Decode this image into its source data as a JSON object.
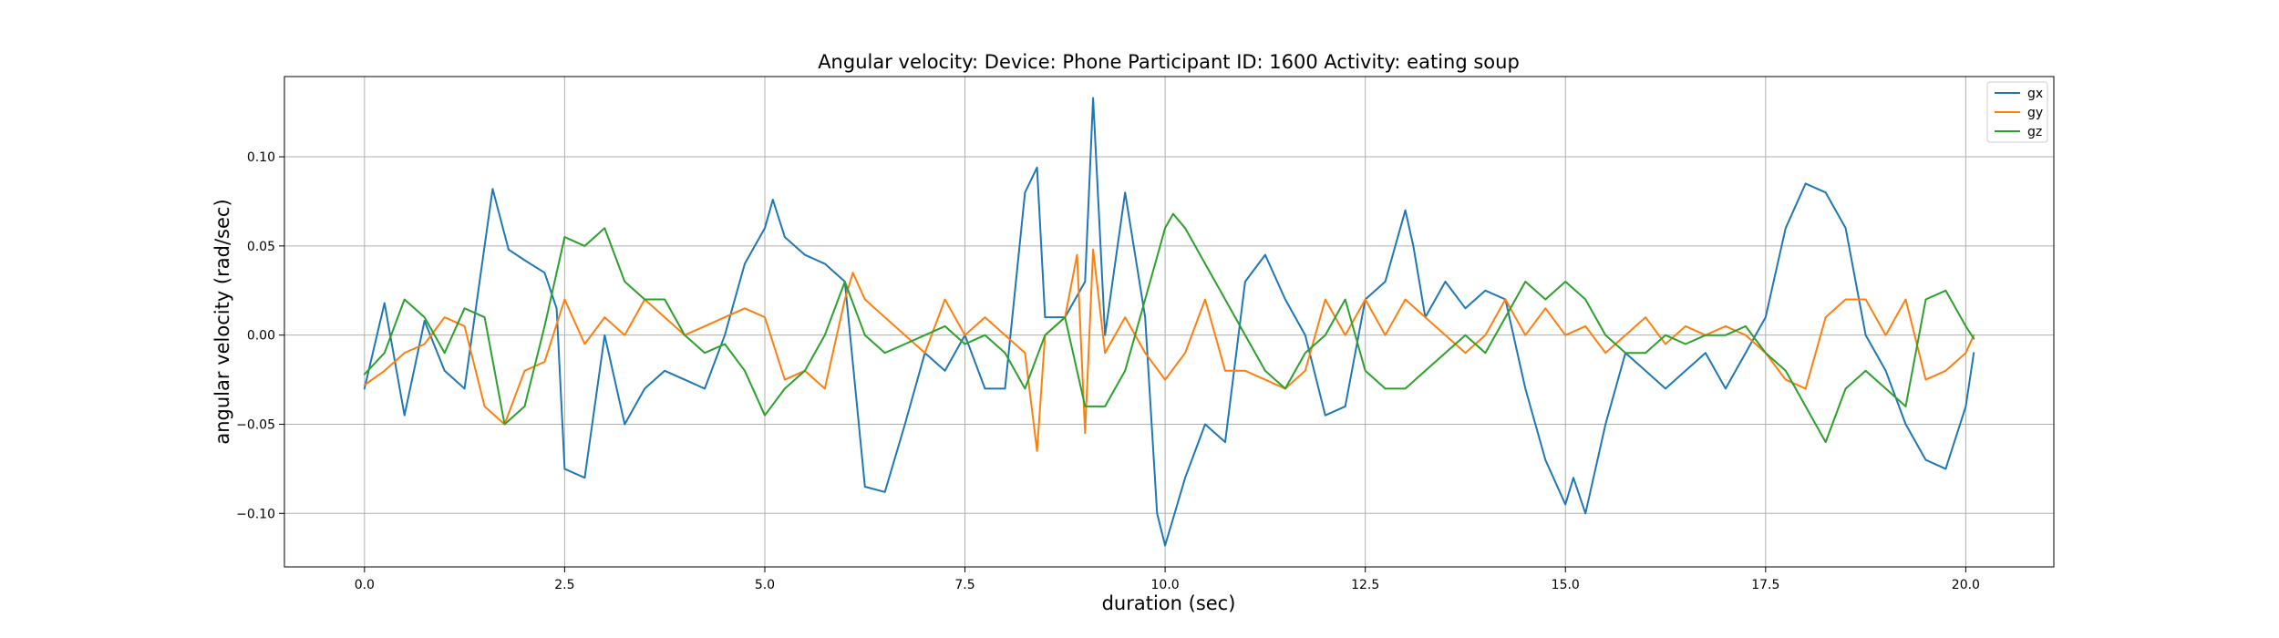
{
  "chart_data": {
    "type": "line",
    "title": "Angular velocity:  Device: Phone     Participant ID: 1600      Activity:  eating soup",
    "xlabel": "duration  (sec)",
    "ylabel": "angular velocity  (rad/sec)",
    "xlim": [
      -1.0,
      21.1
    ],
    "ylim": [
      -0.13,
      0.145
    ],
    "xticks": [
      0.0,
      2.5,
      5.0,
      7.5,
      10.0,
      12.5,
      15.0,
      17.5,
      20.0
    ],
    "xtick_labels": [
      "0.0",
      "2.5",
      "5.0",
      "7.5",
      "10.0",
      "12.5",
      "15.0",
      "17.5",
      "20.0"
    ],
    "yticks": [
      -0.1,
      -0.05,
      0.0,
      0.05,
      0.1
    ],
    "ytick_labels": [
      "−0.10",
      "−0.05",
      "0.00",
      "0.05",
      "0.10"
    ],
    "grid": true,
    "legend_position": "top-right",
    "series": [
      {
        "name": "gx",
        "color": "#1f77b4",
        "x": [
          0.0,
          0.25,
          0.5,
          0.75,
          1.0,
          1.25,
          1.5,
          1.6,
          1.8,
          2.0,
          2.25,
          2.4,
          2.5,
          2.75,
          3.0,
          3.25,
          3.5,
          3.75,
          4.0,
          4.25,
          4.5,
          4.75,
          5.0,
          5.1,
          5.25,
          5.5,
          5.75,
          6.0,
          6.25,
          6.5,
          6.75,
          7.0,
          7.25,
          7.5,
          7.75,
          8.0,
          8.25,
          8.4,
          8.5,
          8.75,
          9.0,
          9.1,
          9.25,
          9.5,
          9.75,
          9.9,
          10.0,
          10.25,
          10.5,
          10.75,
          11.0,
          11.25,
          11.5,
          11.75,
          12.0,
          12.25,
          12.5,
          12.75,
          13.0,
          13.1,
          13.25,
          13.5,
          13.75,
          14.0,
          14.25,
          14.5,
          14.75,
          15.0,
          15.1,
          15.25,
          15.5,
          15.75,
          16.0,
          16.25,
          16.5,
          16.75,
          17.0,
          17.25,
          17.5,
          17.75,
          18.0,
          18.25,
          18.5,
          18.75,
          19.0,
          19.25,
          19.5,
          19.75,
          20.0,
          20.1
        ],
        "values": [
          -0.03,
          0.018,
          -0.045,
          0.008,
          -0.02,
          -0.03,
          0.05,
          0.082,
          0.048,
          0.042,
          0.035,
          0.015,
          -0.075,
          -0.08,
          0.0,
          -0.05,
          -0.03,
          -0.02,
          -0.025,
          -0.03,
          0.0,
          0.04,
          0.06,
          0.076,
          0.055,
          0.045,
          0.04,
          0.03,
          -0.085,
          -0.088,
          -0.05,
          -0.01,
          -0.02,
          0.0,
          -0.03,
          -0.03,
          0.08,
          0.094,
          0.01,
          0.01,
          0.03,
          0.133,
          0.0,
          0.08,
          0.01,
          -0.1,
          -0.118,
          -0.08,
          -0.05,
          -0.06,
          0.03,
          0.045,
          0.02,
          0.0,
          -0.045,
          -0.04,
          0.02,
          0.03,
          0.07,
          0.05,
          0.01,
          0.03,
          0.015,
          0.025,
          0.02,
          -0.03,
          -0.07,
          -0.095,
          -0.08,
          -0.1,
          -0.05,
          -0.01,
          -0.02,
          -0.03,
          -0.02,
          -0.01,
          -0.03,
          -0.01,
          0.01,
          0.06,
          0.085,
          0.08,
          0.06,
          0.0,
          -0.02,
          -0.05,
          -0.07,
          -0.075,
          -0.04,
          -0.01
        ]
      },
      {
        "name": "gy",
        "color": "#ff7f0e",
        "x": [
          0.0,
          0.25,
          0.5,
          0.75,
          1.0,
          1.25,
          1.5,
          1.75,
          2.0,
          2.25,
          2.5,
          2.75,
          3.0,
          3.25,
          3.5,
          3.75,
          4.0,
          4.25,
          4.5,
          4.75,
          5.0,
          5.25,
          5.5,
          5.75,
          6.0,
          6.1,
          6.25,
          6.5,
          6.75,
          7.0,
          7.25,
          7.5,
          7.75,
          8.0,
          8.25,
          8.4,
          8.5,
          8.75,
          8.9,
          9.0,
          9.1,
          9.25,
          9.5,
          9.75,
          10.0,
          10.25,
          10.5,
          10.75,
          11.0,
          11.25,
          11.5,
          11.75,
          12.0,
          12.25,
          12.5,
          12.75,
          13.0,
          13.25,
          13.5,
          13.75,
          14.0,
          14.25,
          14.5,
          14.75,
          15.0,
          15.25,
          15.5,
          15.75,
          16.0,
          16.25,
          16.5,
          16.75,
          17.0,
          17.25,
          17.5,
          17.75,
          18.0,
          18.25,
          18.5,
          18.75,
          19.0,
          19.25,
          19.5,
          19.75,
          20.0,
          20.1
        ],
        "values": [
          -0.028,
          -0.02,
          -0.01,
          -0.005,
          0.01,
          0.005,
          -0.04,
          -0.05,
          -0.02,
          -0.015,
          0.02,
          -0.005,
          0.01,
          0.0,
          0.02,
          0.01,
          0.0,
          0.005,
          0.01,
          0.015,
          0.01,
          -0.025,
          -0.02,
          -0.03,
          0.02,
          0.035,
          0.02,
          0.01,
          0.0,
          -0.01,
          0.02,
          0.0,
          0.01,
          0.0,
          -0.01,
          -0.065,
          0.0,
          0.01,
          0.045,
          -0.055,
          0.048,
          -0.01,
          0.01,
          -0.01,
          -0.025,
          -0.01,
          0.02,
          -0.02,
          -0.02,
          -0.025,
          -0.03,
          -0.02,
          0.02,
          0.0,
          0.02,
          0.0,
          0.02,
          0.01,
          0.0,
          -0.01,
          0.0,
          0.02,
          0.0,
          0.015,
          0.0,
          0.005,
          -0.01,
          0.0,
          0.01,
          -0.005,
          0.005,
          0.0,
          0.005,
          0.0,
          -0.01,
          -0.025,
          -0.03,
          0.01,
          0.02,
          0.02,
          0.0,
          0.02,
          -0.025,
          -0.02,
          -0.01,
          0.0
        ]
      },
      {
        "name": "gz",
        "color": "#2ca02c",
        "x": [
          0.0,
          0.25,
          0.5,
          0.75,
          1.0,
          1.25,
          1.5,
          1.75,
          2.0,
          2.25,
          2.5,
          2.75,
          3.0,
          3.25,
          3.5,
          3.75,
          4.0,
          4.25,
          4.5,
          4.75,
          5.0,
          5.25,
          5.5,
          5.75,
          6.0,
          6.25,
          6.5,
          6.75,
          7.0,
          7.25,
          7.5,
          7.75,
          8.0,
          8.25,
          8.5,
          8.75,
          9.0,
          9.25,
          9.5,
          9.75,
          10.0,
          10.1,
          10.25,
          10.5,
          10.75,
          11.0,
          11.25,
          11.5,
          11.75,
          12.0,
          12.25,
          12.5,
          12.75,
          13.0,
          13.25,
          13.5,
          13.75,
          14.0,
          14.25,
          14.5,
          14.75,
          15.0,
          15.25,
          15.5,
          15.75,
          16.0,
          16.25,
          16.5,
          16.75,
          17.0,
          17.25,
          17.5,
          17.75,
          18.0,
          18.25,
          18.5,
          18.75,
          19.0,
          19.25,
          19.5,
          19.75,
          20.0,
          20.1
        ],
        "values": [
          -0.022,
          -0.01,
          0.02,
          0.01,
          -0.01,
          0.015,
          0.01,
          -0.05,
          -0.04,
          0.005,
          0.055,
          0.05,
          0.06,
          0.03,
          0.02,
          0.02,
          0.0,
          -0.01,
          -0.005,
          -0.02,
          -0.045,
          -0.03,
          -0.02,
          0.0,
          0.03,
          0.0,
          -0.01,
          -0.005,
          0.0,
          0.005,
          -0.005,
          0.0,
          -0.01,
          -0.03,
          0.0,
          0.01,
          -0.04,
          -0.04,
          -0.02,
          0.02,
          0.06,
          0.068,
          0.06,
          0.04,
          0.02,
          0.0,
          -0.02,
          -0.03,
          -0.01,
          0.0,
          0.02,
          -0.02,
          -0.03,
          -0.03,
          -0.02,
          -0.01,
          0.0,
          -0.01,
          0.01,
          0.03,
          0.02,
          0.03,
          0.02,
          0.0,
          -0.01,
          -0.01,
          0.0,
          -0.005,
          0.0,
          0.0,
          0.005,
          -0.01,
          -0.02,
          -0.04,
          -0.06,
          -0.03,
          -0.02,
          -0.03,
          -0.04,
          0.02,
          0.025,
          0.005,
          -0.002
        ]
      }
    ]
  }
}
